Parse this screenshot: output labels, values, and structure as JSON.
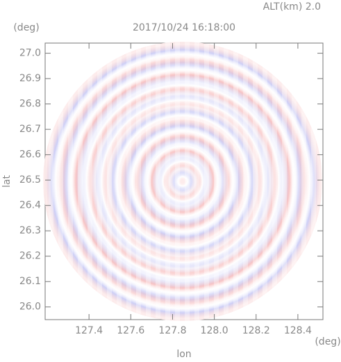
{
  "chart_data": {
    "type": "radar-ppi",
    "title": "2017/10/24 16:18:00",
    "subtitle": "ALT(km) 2.0",
    "x_label": "lon",
    "y_label": "lat",
    "x_unit": "(deg)",
    "y_unit": "(deg)",
    "xlim": [
      127.19,
      128.52
    ],
    "ylim": [
      25.95,
      27.04
    ],
    "xticks": [
      127.4,
      127.6,
      127.8,
      {
        "value": 128.0,
        "label": "128.0"
      },
      128.2,
      128.4
    ],
    "yticks": [
      {
        "value": 26.0,
        "label": "26.0"
      },
      26.1,
      26.2,
      26.3,
      26.4,
      26.5,
      26.6,
      26.7,
      26.8,
      26.9,
      {
        "value": 27.0,
        "label": "27.0"
      }
    ]
  }
}
